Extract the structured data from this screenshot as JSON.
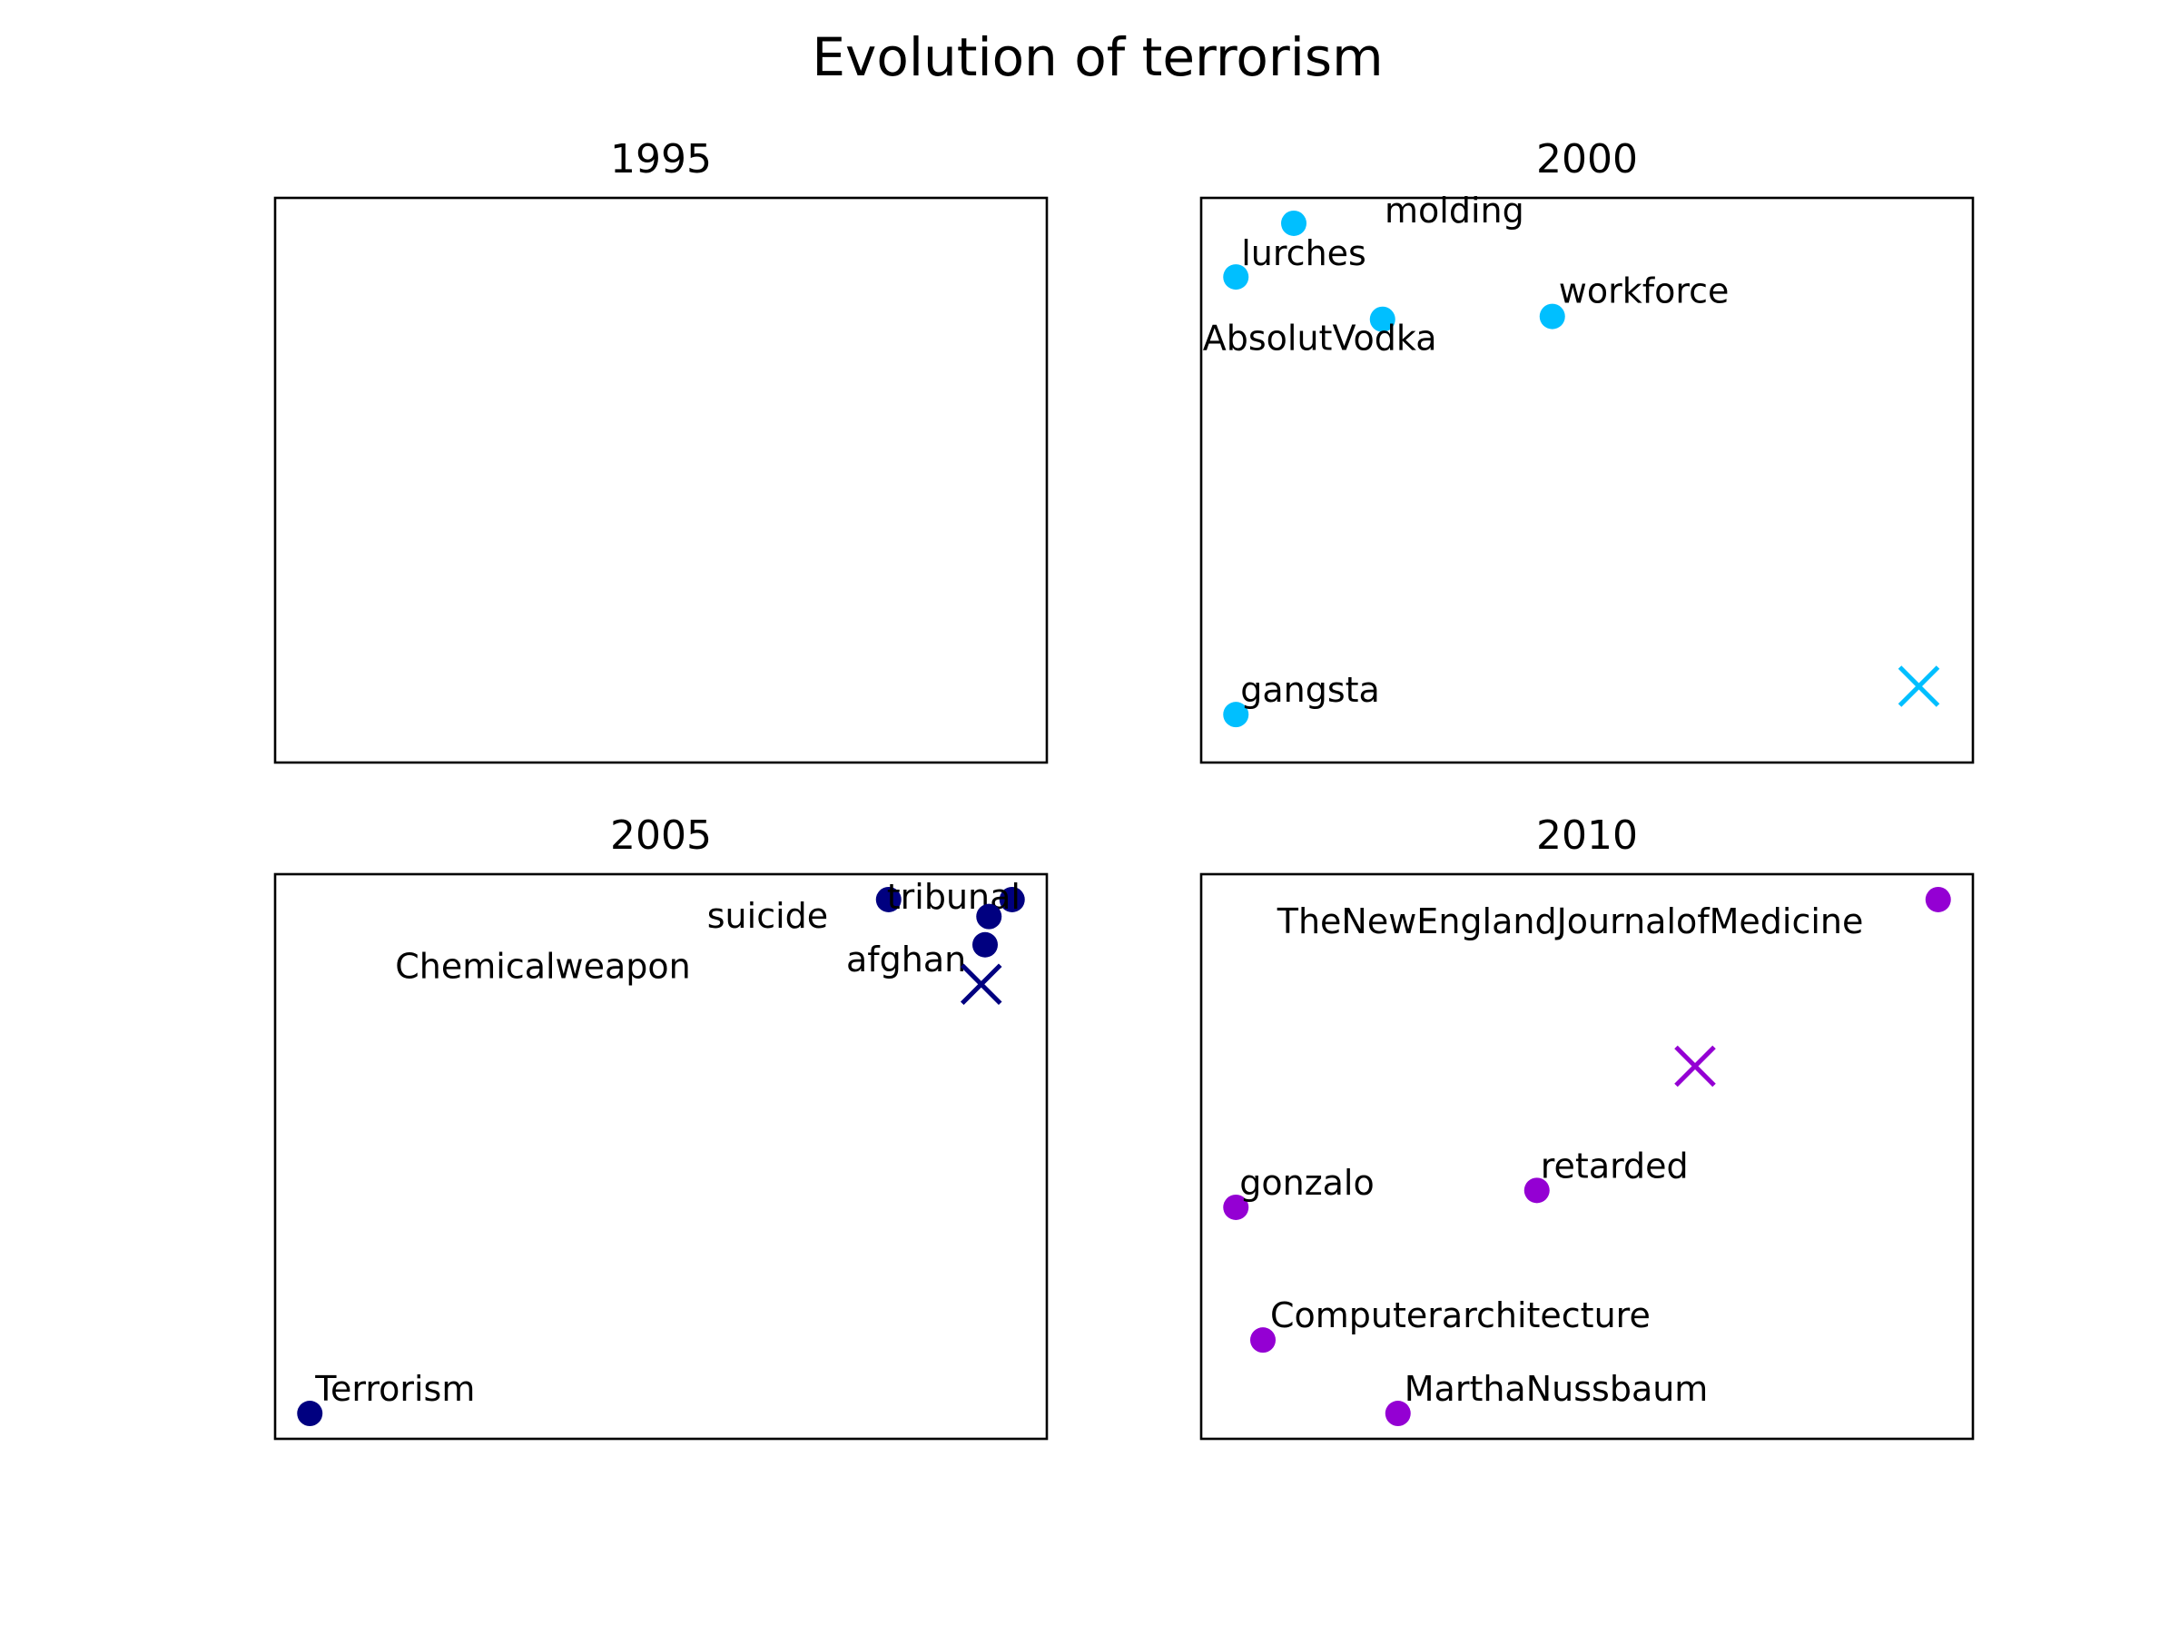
{
  "title": "Evolution of terrorism",
  "chart_data": [
    {
      "type": "scatter",
      "title": "1995",
      "xlabel": "",
      "ylabel": "",
      "grid": false,
      "color": "#00bfff",
      "points": [],
      "centroid": null
    },
    {
      "type": "scatter",
      "title": "2000",
      "xlabel": "",
      "ylabel": "",
      "grid": false,
      "color": "#00bfff",
      "points": [
        {
          "label": "molding",
          "x": 0.12,
          "y": 0.955
        },
        {
          "label": "lurches",
          "x": 0.045,
          "y": 0.86
        },
        {
          "label": "AbsolutVodka",
          "x": 0.235,
          "y": 0.785
        },
        {
          "label": "workforce",
          "x": 0.455,
          "y": 0.79
        },
        {
          "label": "gangsta",
          "x": 0.045,
          "y": 0.085
        }
      ],
      "centroid": {
        "x": 0.93,
        "y": 0.135
      }
    },
    {
      "type": "scatter",
      "title": "2005",
      "xlabel": "",
      "ylabel": "",
      "grid": false,
      "color": "#000080",
      "points": [
        {
          "label": "suicide",
          "x": 0.795,
          "y": 0.955
        },
        {
          "label": "tribunal",
          "x": 0.955,
          "y": 0.955
        },
        {
          "label": "Chemicalweapon",
          "x": 0.925,
          "y": 0.925
        },
        {
          "label": "afghan",
          "x": 0.92,
          "y": 0.875
        },
        {
          "label": "Terrorism",
          "x": 0.045,
          "y": 0.045
        }
      ],
      "centroid": {
        "x": 0.915,
        "y": 0.805
      }
    },
    {
      "type": "scatter",
      "title": "2010",
      "xlabel": "",
      "ylabel": "",
      "grid": false,
      "color": "#9400d3",
      "points": [
        {
          "label": "TheNewEnglandJournalofMedicine",
          "x": 0.955,
          "y": 0.955
        },
        {
          "label": "retarded",
          "x": 0.435,
          "y": 0.44
        },
        {
          "label": "gonzalo",
          "x": 0.045,
          "y": 0.41
        },
        {
          "label": "Computerarchitecture",
          "x": 0.08,
          "y": 0.175
        },
        {
          "label": "MarthaNussbaum",
          "x": 0.255,
          "y": 0.045
        }
      ],
      "centroid": {
        "x": 0.64,
        "y": 0.66
      }
    }
  ]
}
